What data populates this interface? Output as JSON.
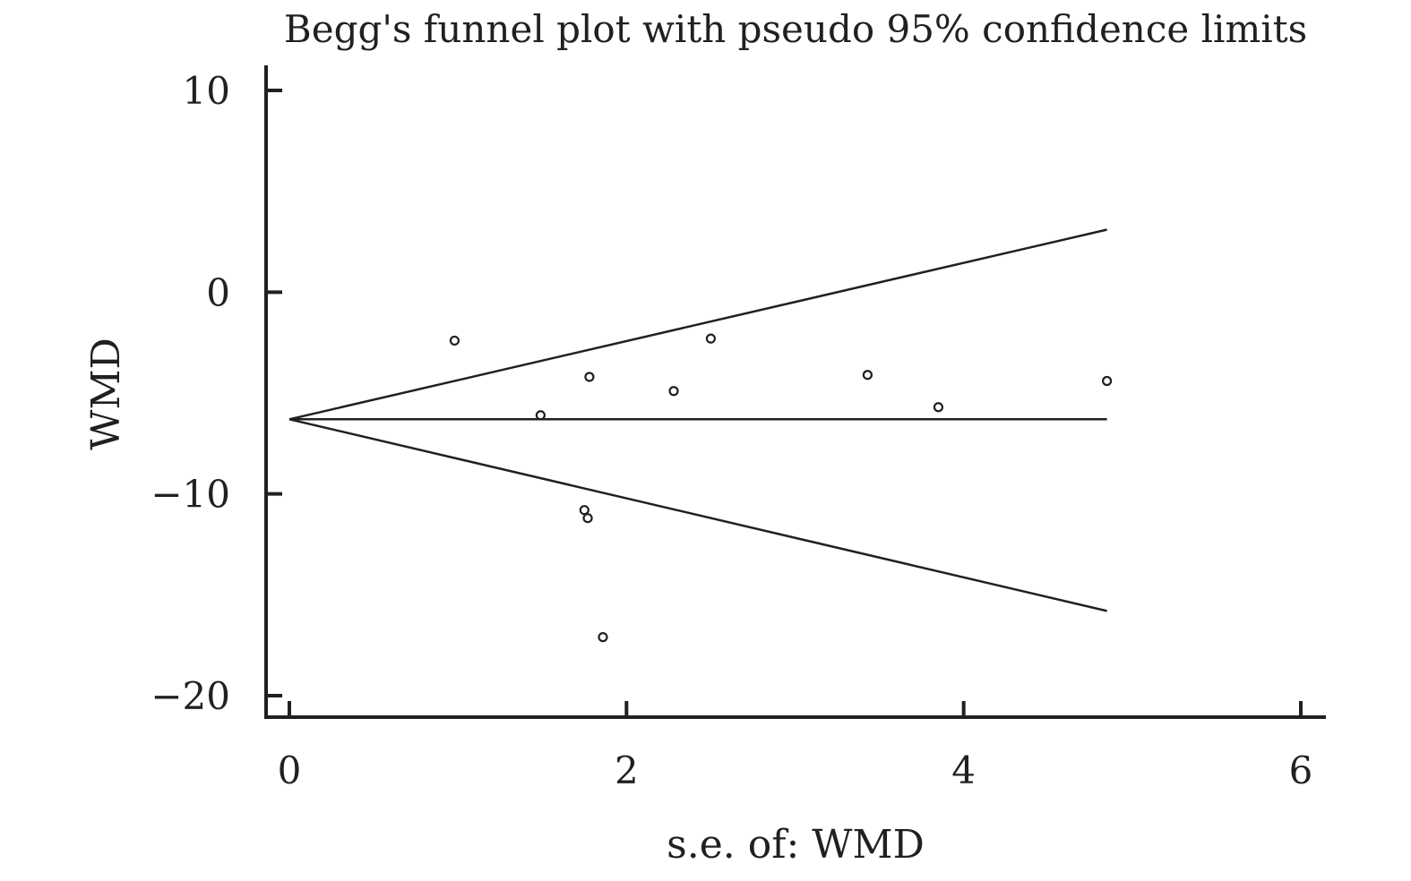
{
  "chart_data": {
    "type": "scatter",
    "title": "Begg's funnel plot with pseudo 95% confidence limits",
    "xlabel": "s.e. of: WMD",
    "ylabel": "WMD",
    "xlim": [
      0,
      6
    ],
    "ylim": [
      -20,
      10
    ],
    "x_ticks": [
      0,
      2,
      4,
      6
    ],
    "y_ticks": [
      10,
      0,
      -10,
      -20
    ],
    "x_tick_labels": [
      "0",
      "2",
      "4",
      "6"
    ],
    "y_tick_labels": [
      "10",
      "0",
      "−10",
      "−20"
    ],
    "grid": false,
    "pooled_estimate": -6.3,
    "funnel_max_se": 4.85,
    "lines": [
      {
        "role": "pooled",
        "x": [
          0,
          4.85
        ],
        "y": [
          -6.3,
          -6.3
        ]
      },
      {
        "role": "upper-limit",
        "x": [
          0,
          4.85
        ],
        "y": [
          -6.3,
          3.1
        ]
      },
      {
        "role": "lower-limit",
        "x": [
          0,
          4.85
        ],
        "y": [
          -6.3,
          -15.8
        ]
      }
    ],
    "points": [
      {
        "x": 0.98,
        "y": -2.4
      },
      {
        "x": 1.49,
        "y": -6.1
      },
      {
        "x": 1.75,
        "y": -10.8
      },
      {
        "x": 1.77,
        "y": -11.2
      },
      {
        "x": 1.78,
        "y": -4.2
      },
      {
        "x": 1.86,
        "y": -17.1
      },
      {
        "x": 2.28,
        "y": -4.9
      },
      {
        "x": 2.5,
        "y": -2.3
      },
      {
        "x": 3.43,
        "y": -4.1
      },
      {
        "x": 3.85,
        "y": -5.7
      },
      {
        "x": 4.85,
        "y": -4.4
      }
    ]
  }
}
